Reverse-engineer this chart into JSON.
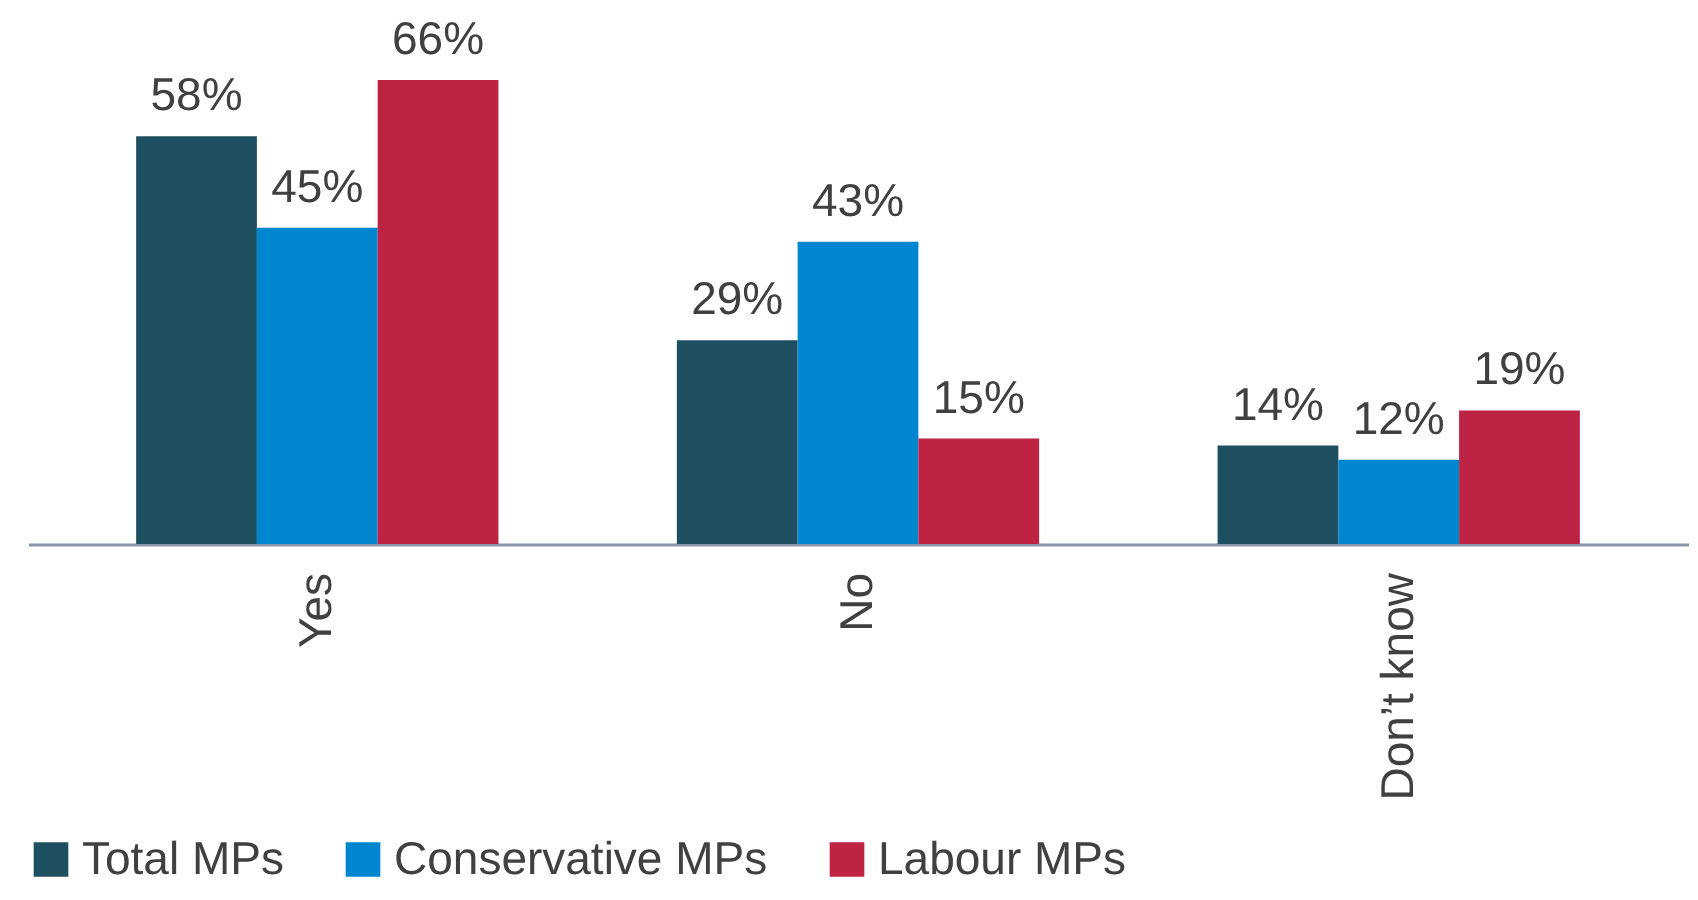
{
  "chart_data": {
    "type": "bar",
    "categories": [
      "Yes",
      "No",
      "Don’t know"
    ],
    "series": [
      {
        "name": "Total MPs",
        "color": "#1f5061",
        "values": [
          58,
          29,
          14
        ],
        "value_labels": [
          "58%",
          "29%",
          "14%"
        ]
      },
      {
        "name": "Conservative MPs",
        "color": "#0085cf",
        "values": [
          45,
          43,
          12
        ],
        "value_labels": [
          "45%",
          "43%",
          "12%"
        ]
      },
      {
        "name": "Labour MPs",
        "color": "#be2344",
        "values": [
          66,
          15,
          19
        ],
        "value_labels": [
          "66%",
          "15%",
          "19%"
        ]
      }
    ],
    "legend": "bottom"
  }
}
